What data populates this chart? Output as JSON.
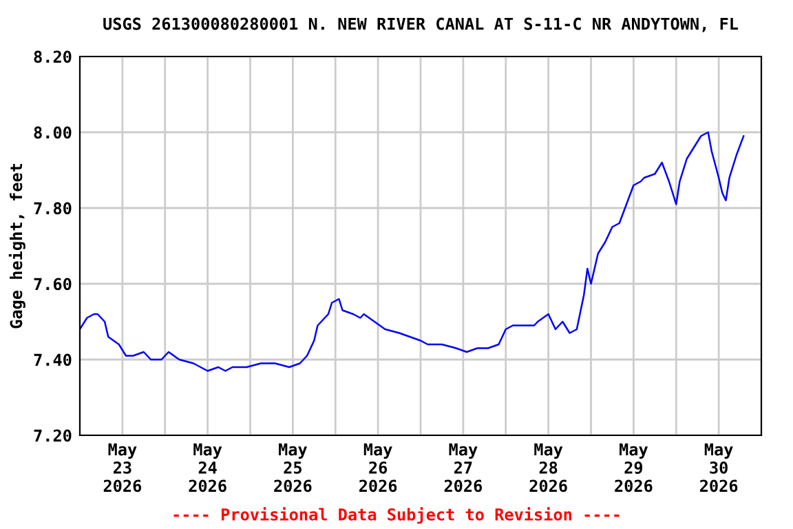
{
  "chart_data": {
    "type": "line",
    "title": "USGS 261300080280001 N. NEW RIVER CANAL AT S-11-C NR ANDYTOWN, FL",
    "ylabel": "Gage height, feet",
    "annotations": [
      "---- Provisional Data Subject to Revision ----"
    ],
    "xlim": [
      "2026-05-23T00:00",
      "2026-05-31T00:00"
    ],
    "xticks": [
      {
        "value": "2026-05-23T12:00",
        "label": "May\n23\n2026"
      },
      {
        "value": "2026-05-24T00:00",
        "label": null
      },
      {
        "value": "2026-05-24T12:00",
        "label": "May\n24\n2026"
      },
      {
        "value": "2026-05-25T00:00",
        "label": null
      },
      {
        "value": "2026-05-25T12:00",
        "label": "May\n25\n2026"
      },
      {
        "value": "2026-05-26T00:00",
        "label": null
      },
      {
        "value": "2026-05-26T12:00",
        "label": "May\n26\n2026"
      },
      {
        "value": "2026-05-27T00:00",
        "label": null
      },
      {
        "value": "2026-05-27T12:00",
        "label": "May\n27\n2026"
      },
      {
        "value": "2026-05-28T00:00",
        "label": null
      },
      {
        "value": "2026-05-28T12:00",
        "label": "May\n28\n2026"
      },
      {
        "value": "2026-05-29T00:00",
        "label": null
      },
      {
        "value": "2026-05-29T12:00",
        "label": "May\n29\n2026"
      },
      {
        "value": "2026-05-30T00:00",
        "label": null
      },
      {
        "value": "2026-05-30T12:00",
        "label": "May\n30\n2026"
      }
    ],
    "ylim": [
      7.2,
      8.2
    ],
    "yticks": [
      {
        "value": 7.2,
        "label": "7.20"
      },
      {
        "value": 7.4,
        "label": "7.40"
      },
      {
        "value": 7.6,
        "label": "7.60"
      },
      {
        "value": 7.8,
        "label": "7.80"
      },
      {
        "value": 8.0,
        "label": "8.00"
      },
      {
        "value": 8.2,
        "label": "8.20"
      }
    ],
    "grid": true,
    "legend": false,
    "series": [
      {
        "color": "#0000ff",
        "x": [
          "2026-05-23T00:00",
          "2026-05-23T02:00",
          "2026-05-23T04:00",
          "2026-05-23T05:00",
          "2026-05-23T07:00",
          "2026-05-23T08:00",
          "2026-05-23T11:00",
          "2026-05-23T13:00",
          "2026-05-23T15:00",
          "2026-05-23T18:00",
          "2026-05-23T20:00",
          "2026-05-23T23:00",
          "2026-05-24T01:00",
          "2026-05-24T04:00",
          "2026-05-24T08:00",
          "2026-05-24T12:00",
          "2026-05-24T15:00",
          "2026-05-24T17:00",
          "2026-05-24T19:00",
          "2026-05-24T23:00",
          "2026-05-25T03:00",
          "2026-05-25T07:00",
          "2026-05-25T11:00",
          "2026-05-25T14:00",
          "2026-05-25T16:00",
          "2026-05-25T18:00",
          "2026-05-25T19:00",
          "2026-05-25T22:00",
          "2026-05-25T23:00",
          "2026-05-26T01:00",
          "2026-05-26T02:00",
          "2026-05-26T05:00",
          "2026-05-26T07:00",
          "2026-05-26T08:00",
          "2026-05-26T11:00",
          "2026-05-26T14:00",
          "2026-05-26T18:00",
          "2026-05-26T21:00",
          "2026-05-27T00:00",
          "2026-05-27T02:00",
          "2026-05-27T06:00",
          "2026-05-27T10:00",
          "2026-05-27T13:00",
          "2026-05-27T16:00",
          "2026-05-27T19:00",
          "2026-05-27T22:00",
          "2026-05-28T00:00",
          "2026-05-28T02:00",
          "2026-05-28T05:00",
          "2026-05-28T08:00",
          "2026-05-28T09:00",
          "2026-05-28T12:00",
          "2026-05-28T14:00",
          "2026-05-28T16:00",
          "2026-05-28T18:00",
          "2026-05-28T20:00",
          "2026-05-28T22:00",
          "2026-05-28T23:00",
          "2026-05-29T00:00",
          "2026-05-29T02:00",
          "2026-05-29T04:00",
          "2026-05-29T06:00",
          "2026-05-29T08:00",
          "2026-05-29T10:00",
          "2026-05-29T12:00",
          "2026-05-29T14:00",
          "2026-05-29T15:00",
          "2026-05-29T18:00",
          "2026-05-29T20:00",
          "2026-05-29T22:00",
          "2026-05-29T23:00",
          "2026-05-30T00:00",
          "2026-05-30T01:00",
          "2026-05-30T03:00",
          "2026-05-30T05:00",
          "2026-05-30T07:00",
          "2026-05-30T09:00",
          "2026-05-30T10:00",
          "2026-05-30T12:00",
          "2026-05-30T13:00",
          "2026-05-30T14:00",
          "2026-05-30T15:00",
          "2026-05-30T17:00",
          "2026-05-30T19:00"
        ],
        "values": [
          7.48,
          7.51,
          7.52,
          7.52,
          7.5,
          7.46,
          7.44,
          7.41,
          7.41,
          7.42,
          7.4,
          7.4,
          7.42,
          7.4,
          7.39,
          7.37,
          7.38,
          7.37,
          7.38,
          7.38,
          7.39,
          7.39,
          7.38,
          7.39,
          7.41,
          7.45,
          7.49,
          7.52,
          7.55,
          7.56,
          7.53,
          7.52,
          7.51,
          7.52,
          7.5,
          7.48,
          7.47,
          7.46,
          7.45,
          7.44,
          7.44,
          7.43,
          7.42,
          7.43,
          7.43,
          7.44,
          7.48,
          7.49,
          7.49,
          7.49,
          7.5,
          7.52,
          7.48,
          7.5,
          7.47,
          7.48,
          7.57,
          7.64,
          7.6,
          7.68,
          7.71,
          7.75,
          7.76,
          7.81,
          7.86,
          7.87,
          7.88,
          7.89,
          7.92,
          7.87,
          7.84,
          7.81,
          7.87,
          7.93,
          7.96,
          7.99,
          8.0,
          7.95,
          7.88,
          7.84,
          7.82,
          7.88,
          7.94,
          7.99
        ]
      }
    ]
  }
}
